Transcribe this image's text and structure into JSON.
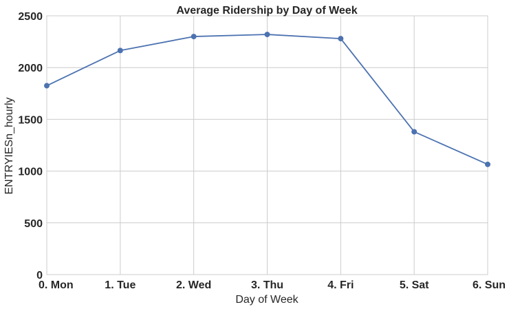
{
  "chart_data": {
    "type": "line",
    "title": "Average Ridership by Day of Week",
    "xlabel": "Day of Week",
    "ylabel": "ENTRYIESn_hourly",
    "categories": [
      "0. Mon",
      "1. Tue",
      "2. Wed",
      "3. Thu",
      "4. Fri",
      "5. Sat",
      "6. Sun"
    ],
    "series": [
      {
        "values": [
          1825,
          2165,
          2300,
          2320,
          2280,
          1380,
          1065
        ],
        "color": "#4c72b0"
      }
    ],
    "ylim": [
      0,
      2500
    ],
    "yticks": [
      0,
      500,
      1000,
      1500,
      2000,
      2500
    ],
    "grid": true,
    "legend": "none"
  }
}
